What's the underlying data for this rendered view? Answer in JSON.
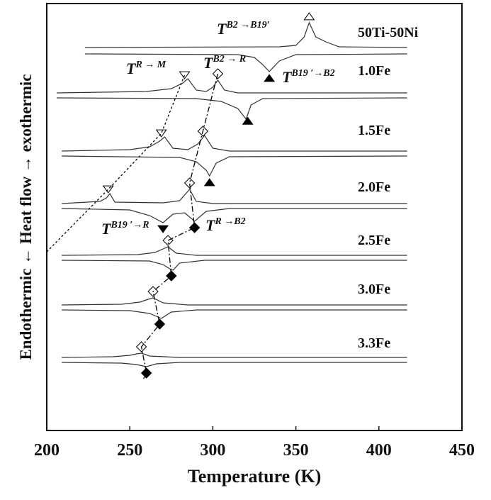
{
  "chart_data": {
    "type": "dsc",
    "xlabel": "Temperature (K)",
    "ylabel": "Endothermic ← Heat flow → exothermic",
    "xlim": [
      200,
      450
    ],
    "xticks": [
      200,
      250,
      300,
      350,
      400,
      450
    ],
    "samples": [
      {
        "name": "50Ti-50Ni",
        "cooling": {
          "x": [
            223,
            340,
            350,
            355,
            358,
            362,
            368,
            376,
            417
          ],
          "values": [
            0,
            1,
            3,
            15,
            35,
            15,
            8,
            1,
            0
          ]
        },
        "heating": {
          "x": [
            223,
            315,
            325,
            330,
            334,
            340,
            350,
            417
          ],
          "values": [
            0,
            -1,
            -5,
            -15,
            -25,
            -10,
            -1,
            0
          ]
        },
        "markers": [
          {
            "symbol": "open-triangle-up",
            "on": "cooling",
            "x": 358
          },
          {
            "symbol": "filled-triangle-up",
            "on": "heating",
            "x": 334
          }
        ]
      },
      {
        "name": "1.0Fe",
        "cooling": {
          "x": [
            206,
            260,
            275,
            282,
            285,
            290,
            296,
            300,
            303,
            307,
            315,
            417
          ],
          "values": [
            0,
            2,
            6,
            14,
            20,
            4,
            2,
            8,
            18,
            4,
            0,
            0
          ]
        },
        "heating": {
          "x": [
            206,
            290,
            305,
            315,
            320,
            323,
            330,
            417
          ],
          "values": [
            0,
            -1,
            -5,
            -15,
            -30,
            -10,
            -1,
            0
          ]
        },
        "markers": [
          {
            "symbol": "open-triangle-down",
            "on": "cooling",
            "x": 283
          },
          {
            "symbol": "open-diamond",
            "on": "cooling",
            "x": 303
          },
          {
            "symbol": "filled-triangle-up",
            "on": "heating",
            "x": 321
          }
        ]
      },
      {
        "name": "1.5Fe",
        "cooling": {
          "x": [
            209,
            250,
            262,
            268,
            271,
            276,
            285,
            291,
            295,
            300,
            310,
            417
          ],
          "values": [
            0,
            2,
            6,
            14,
            20,
            4,
            2,
            10,
            22,
            4,
            0,
            0
          ]
        },
        "heating": {
          "x": [
            209,
            280,
            290,
            296,
            298,
            302,
            310,
            417
          ],
          "values": [
            0,
            -2,
            -8,
            -20,
            -28,
            -10,
            -1,
            0
          ]
        },
        "markers": [
          {
            "symbol": "open-triangle-down",
            "on": "cooling",
            "x": 269
          },
          {
            "symbol": "open-diamond",
            "on": "cooling",
            "x": 294
          },
          {
            "symbol": "filled-triangle-up",
            "on": "heating",
            "x": 298
          }
        ]
      },
      {
        "name": "2.0Fe",
        "cooling": {
          "x": [
            209,
            232,
            236,
            238,
            241,
            270,
            280,
            286,
            290,
            300,
            417
          ],
          "values": [
            0,
            3,
            8,
            14,
            2,
            1,
            4,
            20,
            3,
            0,
            0
          ]
        },
        "heating": {
          "x": [
            209,
            250,
            262,
            270,
            276,
            283,
            289,
            296,
            310,
            417
          ],
          "values": [
            0,
            -2,
            -10,
            -20,
            -8,
            -6,
            -18,
            -4,
            0,
            0
          ]
        },
        "markers": [
          {
            "symbol": "open-triangle-down",
            "on": "cooling",
            "x": 237
          },
          {
            "symbol": "open-diamond",
            "on": "cooling",
            "x": 286
          },
          {
            "symbol": "filled-triangle-down",
            "on": "heating",
            "x": 270
          },
          {
            "symbol": "filled-diamond",
            "on": "heating",
            "x": 289
          }
        ]
      },
      {
        "name": "2.5Fe",
        "cooling": {
          "x": [
            209,
            255,
            265,
            270,
            273,
            278,
            290,
            417
          ],
          "values": [
            0,
            1,
            4,
            9,
            12,
            3,
            0,
            0
          ]
        },
        "heating": {
          "x": [
            209,
            262,
            270,
            274,
            276,
            280,
            295,
            417
          ],
          "values": [
            0,
            -1,
            -6,
            -12,
            -14,
            -4,
            0,
            0
          ]
        },
        "markers": [
          {
            "symbol": "open-diamond",
            "on": "cooling",
            "x": 273
          },
          {
            "symbol": "filled-diamond",
            "on": "heating",
            "x": 275
          }
        ]
      },
      {
        "name": "3.0Fe",
        "cooling": {
          "x": [
            209,
            245,
            256,
            261,
            264,
            270,
            285,
            417
          ],
          "values": [
            0,
            1,
            4,
            8,
            10,
            3,
            0,
            0
          ]
        },
        "heating": {
          "x": [
            209,
            250,
            262,
            267,
            269,
            275,
            290,
            417
          ],
          "values": [
            0,
            -1,
            -5,
            -10,
            -12,
            -3,
            0,
            0
          ]
        },
        "markers": [
          {
            "symbol": "open-diamond",
            "on": "cooling",
            "x": 264
          },
          {
            "symbol": "filled-diamond",
            "on": "heating",
            "x": 268
          }
        ]
      },
      {
        "name": "3.3Fe",
        "cooling": {
          "x": [
            209,
            240,
            250,
            254,
            257,
            262,
            280,
            417
          ],
          "values": [
            0,
            1,
            3,
            5,
            6,
            2,
            0,
            0
          ]
        },
        "heating": {
          "x": [
            209,
            245,
            254,
            258,
            260,
            266,
            280,
            417
          ],
          "values": [
            0,
            -1,
            -3,
            -5,
            -6,
            -2,
            0,
            0
          ]
        },
        "markers": [
          {
            "symbol": "open-diamond",
            "on": "cooling",
            "x": 257
          },
          {
            "symbol": "filled-diamond",
            "on": "heating",
            "x": 260
          }
        ]
      }
    ],
    "annotations": [
      {
        "base": "T",
        "sup": "B2 →B19′"
      },
      {
        "base": "T",
        "sup": "R → M"
      },
      {
        "base": "T",
        "sup": "B2 → R"
      },
      {
        "base": "T",
        "sup": "B19 ′→B2"
      },
      {
        "base": "T",
        "sup": "B19 ′→R"
      },
      {
        "base": "T",
        "sup": "R →B2"
      }
    ]
  }
}
